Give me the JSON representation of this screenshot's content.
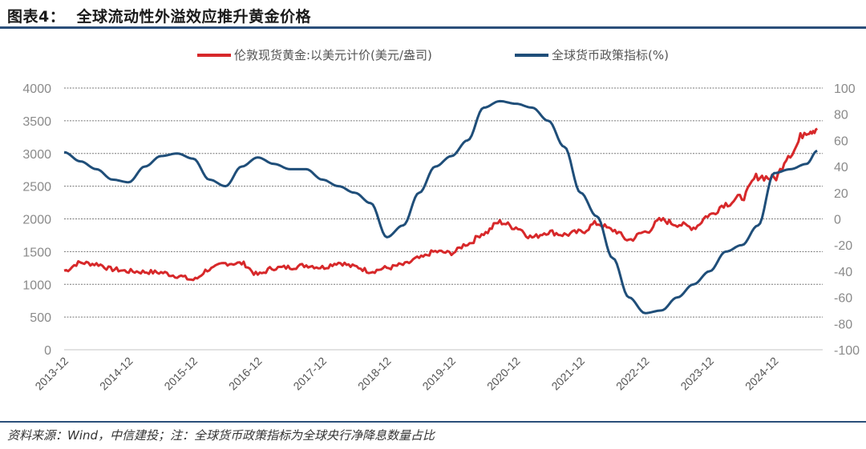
{
  "header": {
    "title": "图表4：  全球流动性外溢效应推升黄金价格"
  },
  "footer": {
    "source": "资料来源：Wind，中信建投；注：全球货币政策指标为全球央行净降息数量占比"
  },
  "colors": {
    "gold_series": "#d7282a",
    "policy_series": "#1f4e79",
    "rule": "#2b4f7a",
    "grid": "#777777",
    "axis_text": "#8a8a8a"
  },
  "legend": {
    "items": [
      {
        "label": "伦敦现货黄金:以美元计价(美元/盎司)",
        "color": "#d7282a"
      },
      {
        "label": "全球货币政策指标(%)",
        "color": "#1f4e79"
      }
    ]
  },
  "chart_data": {
    "type": "line",
    "title": "全球流动性外溢效应推升黄金价格",
    "xlabel": "",
    "ylabel_left": "伦敦现货黄金:以美元计价(美元/盎司)",
    "ylabel_right": "全球货币政策指标(%)",
    "ylim_left": [
      0,
      4000
    ],
    "ylim_right": [
      -100,
      100
    ],
    "yticks_left": [
      0,
      500,
      1000,
      1500,
      2000,
      2500,
      3000,
      3500,
      4000
    ],
    "yticks_right": [
      -100,
      -80,
      -60,
      -40,
      -20,
      0,
      20,
      40,
      60,
      80,
      100
    ],
    "x_tick_labels": [
      "2013-12",
      "2014-12",
      "2015-12",
      "2016-12",
      "2017-12",
      "2018-12",
      "2019-12",
      "2020-12",
      "2021-12",
      "2022-12",
      "2023-12",
      "2024-12"
    ],
    "grid": true,
    "legend_position": "top",
    "x": [
      "2013-12",
      "2014-03",
      "2014-06",
      "2014-09",
      "2014-12",
      "2015-03",
      "2015-06",
      "2015-09",
      "2015-12",
      "2016-03",
      "2016-06",
      "2016-09",
      "2016-12",
      "2017-03",
      "2017-06",
      "2017-09",
      "2017-12",
      "2018-03",
      "2018-06",
      "2018-09",
      "2018-12",
      "2019-03",
      "2019-06",
      "2019-09",
      "2019-12",
      "2020-03",
      "2020-06",
      "2020-09",
      "2020-12",
      "2021-03",
      "2021-06",
      "2021-09",
      "2021-12",
      "2022-03",
      "2022-06",
      "2022-09",
      "2022-12",
      "2023-03",
      "2023-06",
      "2023-09",
      "2023-12",
      "2024-03",
      "2024-06",
      "2024-09",
      "2024-12",
      "2025-03",
      "2025-06",
      "2025-08"
    ],
    "series": [
      {
        "name": "伦敦现货黄金:以美元计价(美元/盎司)",
        "axis": "left",
        "values": [
          1210,
          1330,
          1310,
          1230,
          1200,
          1190,
          1180,
          1130,
          1070,
          1230,
          1320,
          1320,
          1150,
          1250,
          1260,
          1290,
          1260,
          1330,
          1270,
          1200,
          1250,
          1300,
          1400,
          1500,
          1480,
          1620,
          1780,
          1950,
          1870,
          1720,
          1800,
          1760,
          1800,
          1930,
          1830,
          1680,
          1800,
          1980,
          1920,
          1870,
          2060,
          2230,
          2330,
          2650,
          2620,
          3000,
          3350,
          3380
        ]
      },
      {
        "name": "全球货币政策指标(%)",
        "axis": "right",
        "values": [
          51,
          44,
          38,
          30,
          28,
          40,
          48,
          50,
          46,
          30,
          25,
          40,
          47,
          42,
          38,
          38,
          30,
          25,
          20,
          12,
          -14,
          -5,
          20,
          40,
          48,
          60,
          85,
          90,
          88,
          85,
          75,
          55,
          20,
          2,
          -30,
          -60,
          -72,
          -70,
          -60,
          -50,
          -40,
          -25,
          -20,
          -5,
          35,
          38,
          42,
          52
        ]
      }
    ]
  }
}
